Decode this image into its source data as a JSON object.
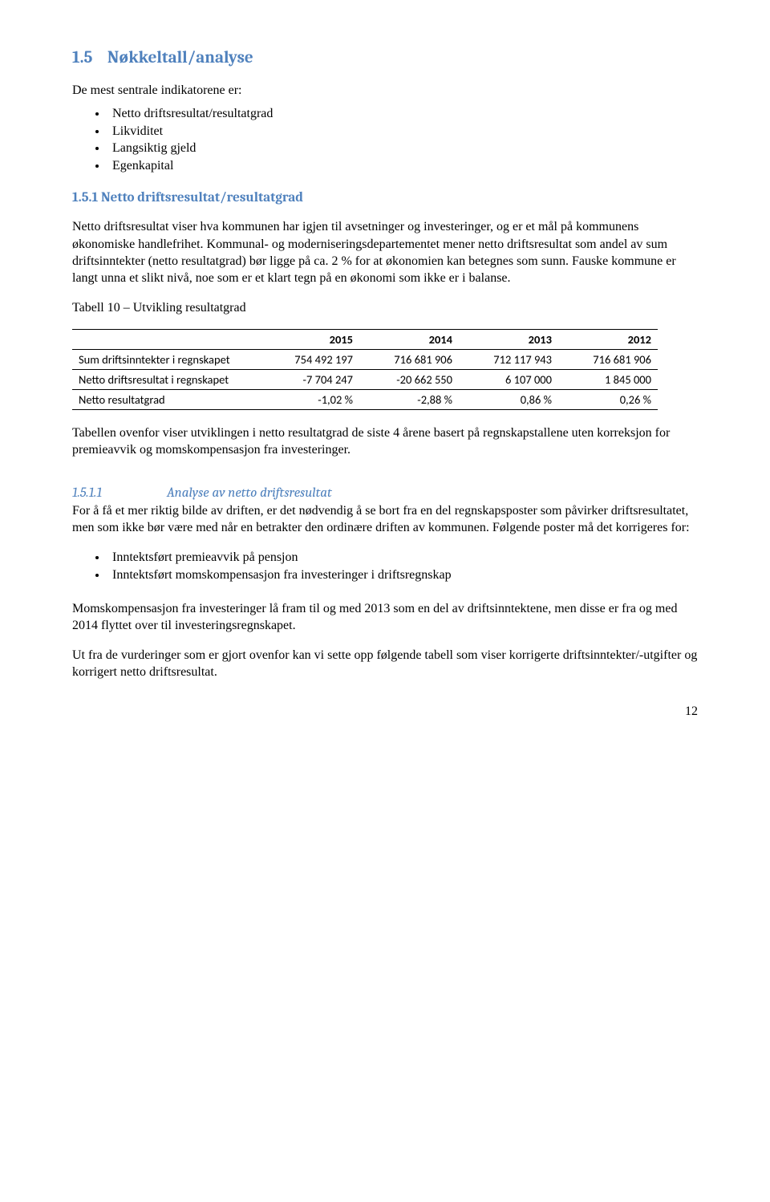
{
  "section": {
    "number": "1.5",
    "title": "Nøkkeltall/analyse",
    "intro": "De mest sentrale indikatorene er:",
    "bullets": [
      "Netto driftsresultat/resultatgrad",
      "Likviditet",
      "Langsiktig gjeld",
      "Egenkapital"
    ]
  },
  "subsection": {
    "number": "1.5.1",
    "title": "Netto driftsresultat/resultatgrad",
    "para1": "Netto driftsresultat viser hva kommunen har igjen til avsetninger og investeringer, og er et mål på kommunens økonomiske handlefrihet. Kommunal- og moderniseringsdepartementet mener netto driftsresultat som andel av sum driftsinntekter (netto resultatgrad) bør ligge på ca. 2 % for at økonomien kan betegnes som sunn. Fauske kommune er langt unna et slikt nivå, noe som er et klart tegn på en økonomi som ikke er i balanse.",
    "tableCaption": "Tabell 10 – Utvikling resultatgrad",
    "table": {
      "columns": [
        "2015",
        "2014",
        "2013",
        "2012"
      ],
      "rows": [
        {
          "label": "Sum driftsinntekter i regnskapet",
          "cells": [
            "754 492 197",
            "716 681 906",
            "712 117 943",
            "716 681 906"
          ]
        },
        {
          "label": "Netto driftsresultat i regnskapet",
          "cells": [
            "-7 704 247",
            "-20 662 550",
            "6 107 000",
            "1 845 000"
          ]
        },
        {
          "label": "Netto resultatgrad",
          "cells": [
            "-1,02 %",
            "-2,88 %",
            "0,86 %",
            "0,26 %"
          ]
        }
      ],
      "col_label_width": 218,
      "col_num_width": 108,
      "font_family": "Calibri",
      "font_size": 14.5,
      "border_color": "#000000"
    },
    "para2": "Tabellen ovenfor viser utviklingen i netto resultatgrad de siste 4 årene basert på regnskapstallene uten korreksjon for premieavvik og momskompensasjon fra investeringer."
  },
  "analysis": {
    "number": "1.5.1.1",
    "title": "Analyse av netto driftsresultat",
    "para1": "For å få et mer riktig bilde av driften, er det nødvendig å se bort fra en del regnskapsposter som påvirker driftsresultatet, men som ikke bør være med når en betrakter den ordinære driften av kommunen. Følgende poster må det korrigeres for:",
    "bullets": [
      "Inntektsført premieavvik på pensjon",
      "Inntektsført momskompensasjon fra investeringer i driftsregnskap"
    ],
    "para2": "Momskompensasjon fra investeringer lå fram til og med 2013 som en del av driftsinntektene, men disse er fra og med 2014 flyttet over til investeringsregnskapet.",
    "para3": "Ut fra de vurderinger som er gjort ovenfor kan vi sette opp følgende tabell som viser korrigerte driftsinntekter/-utgifter og korrigert netto driftsresultat."
  },
  "pageNumber": "12",
  "colors": {
    "heading": "#4f81bd",
    "text": "#000000",
    "background": "#ffffff"
  }
}
